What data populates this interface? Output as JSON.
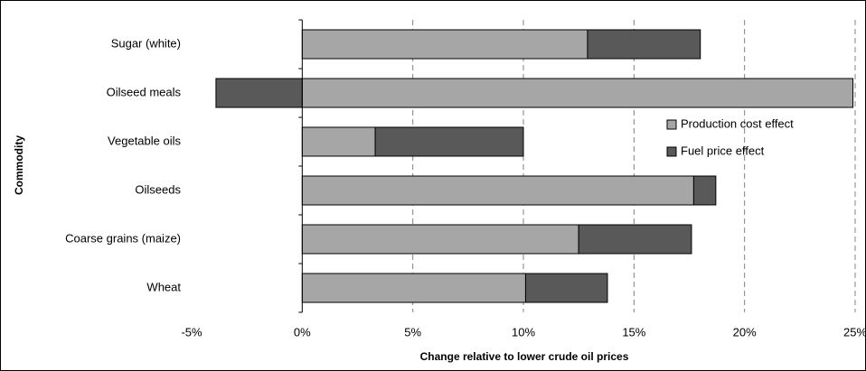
{
  "chart_data": {
    "type": "hbar-stacked",
    "x_label": "Change relative to lower crude oil prices",
    "y_label": "Commodity",
    "categories": [
      "Sugar (white)",
      "Oilseed meals",
      "Vegetable oils",
      "Oilseeds",
      "Coarse grains (maize)",
      "Wheat"
    ],
    "series": [
      {
        "name": "Production cost effect",
        "color": "#a6a6a6",
        "values": [
          12.9,
          24.9,
          3.3,
          17.7,
          12.5,
          10.1
        ]
      },
      {
        "name": "Fuel price effect",
        "color": "#595959",
        "values": [
          5.1,
          -3.9,
          6.7,
          1.0,
          5.1,
          3.7
        ]
      }
    ],
    "xlim": [
      -5,
      25
    ],
    "xticks": [
      {
        "value": -5,
        "label": "-5%"
      },
      {
        "value": 0,
        "label": "0%"
      },
      {
        "value": 5,
        "label": "5%"
      },
      {
        "value": 10,
        "label": "10%"
      },
      {
        "value": 15,
        "label": "15%"
      },
      {
        "value": 20,
        "label": "20%"
      },
      {
        "value": 25,
        "label": "25%"
      }
    ],
    "grid": true,
    "legend": "right"
  }
}
